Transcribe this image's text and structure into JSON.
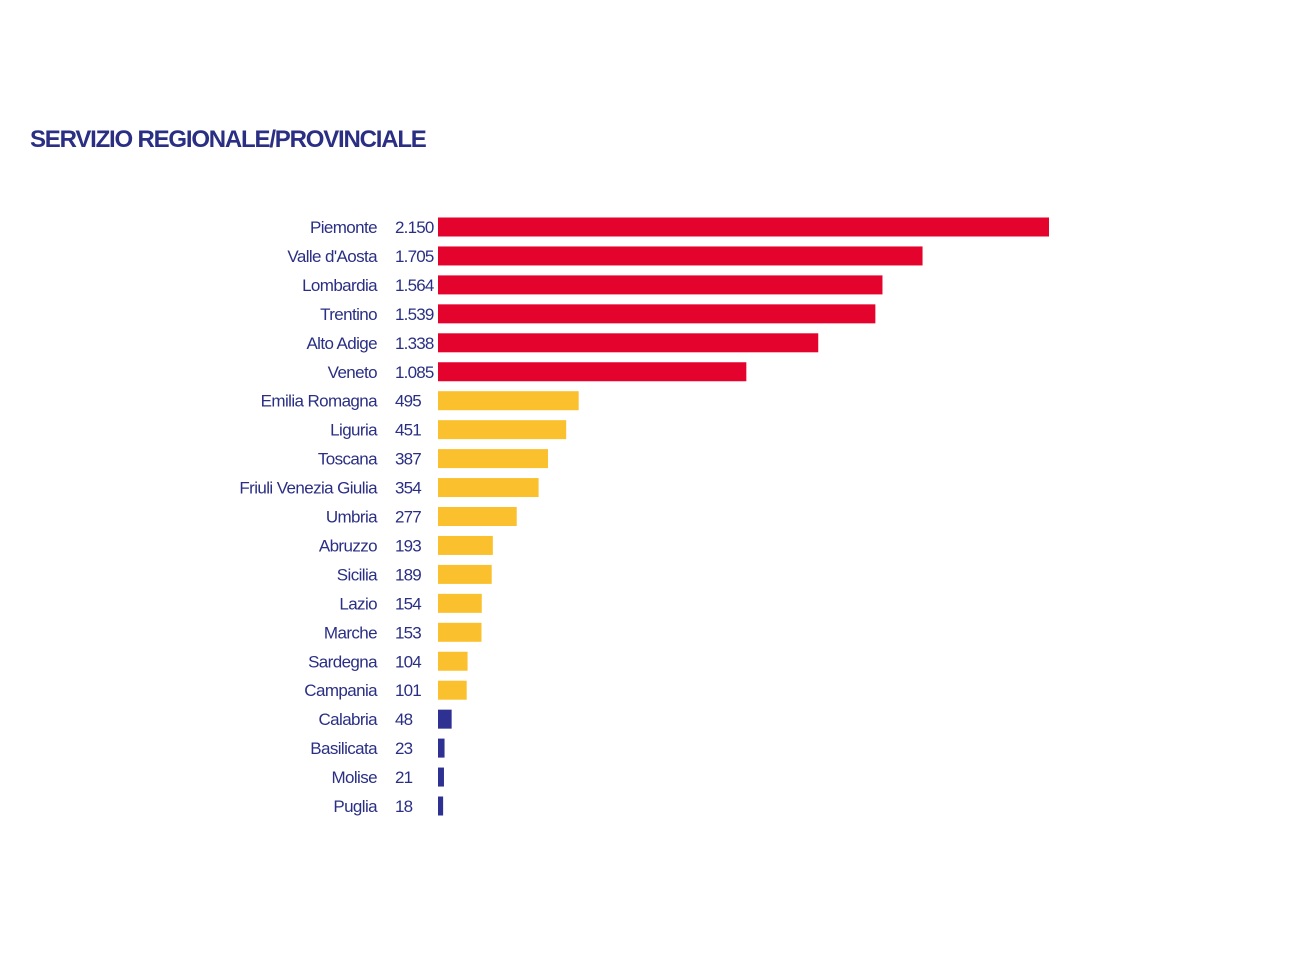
{
  "chart_data": {
    "type": "bar",
    "orientation": "horizontal",
    "title": "SERVIZIO REGIONALE/PROVINCIALE",
    "categories": [
      "Piemonte",
      "Valle d'Aosta",
      "Lombardia",
      "Trentino",
      "Alto Adige",
      "Veneto",
      "Emilia Romagna",
      "Liguria",
      "Toscana",
      "Friuli Venezia Giulia",
      "Umbria",
      "Abruzzo",
      "Sicilia",
      "Lazio",
      "Marche",
      "Sardegna",
      "Campania",
      "Calabria",
      "Basilicata",
      "Molise",
      "Puglia"
    ],
    "values": [
      2150,
      1705,
      1564,
      1539,
      1338,
      1085,
      495,
      451,
      387,
      354,
      277,
      193,
      189,
      154,
      153,
      104,
      101,
      48,
      23,
      21,
      18
    ],
    "value_labels": [
      "2.150",
      "1.705",
      "1.564",
      "1.539",
      "1.338",
      "1.085",
      "495",
      "451",
      "387",
      "354",
      "277",
      "193",
      "189",
      "154",
      "153",
      "104",
      "101",
      "48",
      "23",
      "21",
      "18"
    ],
    "bar_colors": [
      "#e4032c",
      "#e4032c",
      "#e4032c",
      "#e4032c",
      "#e4032c",
      "#e4032c",
      "#fbc02d",
      "#fbc02d",
      "#fbc02d",
      "#fbc02d",
      "#fbc02d",
      "#fbc02d",
      "#fbc02d",
      "#fbc02d",
      "#fbc02d",
      "#fbc02d",
      "#fbc02d",
      "#2e3192",
      "#2e3192",
      "#2e3192",
      "#2e3192"
    ],
    "text_color": "#2a2f84",
    "xlim": [
      0,
      2150
    ],
    "grid": false,
    "legend": "none"
  }
}
